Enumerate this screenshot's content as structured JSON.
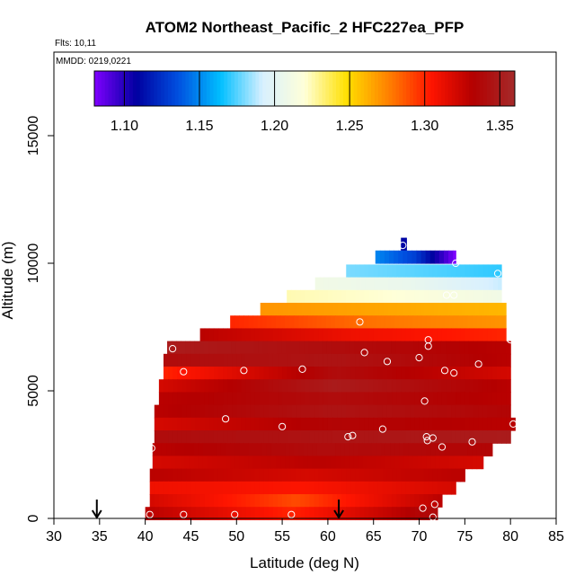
{
  "chart_data": {
    "type": "heatmap",
    "title": "ATOM2 Northeast_Pacific_2 HFC227ea_PFP",
    "flights_label": "Flts: 10,11",
    "dates_label": "MMDD: 0219,0221",
    "xlabel": "Latitude (deg N)",
    "ylabel": "Altitude (m)",
    "xlim": [
      30,
      85
    ],
    "ylim": [
      0,
      17800
    ],
    "xticks": [
      "30",
      "35",
      "40",
      "45",
      "50",
      "55",
      "60",
      "65",
      "70",
      "75",
      "80",
      "85"
    ],
    "yticks": [
      "0",
      "5000",
      "10000",
      "15000"
    ],
    "colorbar": {
      "range": [
        1.08,
        1.36
      ],
      "ticks": [
        "1.10",
        "1.15",
        "1.20",
        "1.25",
        "1.30",
        "1.35"
      ],
      "colors": [
        "#7F00FF",
        "#0000A0",
        "#0050E0",
        "#00BFFF",
        "#D8F0FF",
        "#FFFFD8",
        "#FFE000",
        "#FF8000",
        "#FF1500",
        "#B40000",
        "#A52A2A"
      ]
    },
    "profile_markers_lat": [
      34.7,
      61.2
    ],
    "rows": [
      {
        "alt": 10750,
        "lat": [
          68.0,
          68.6
        ],
        "v": [
          1.11,
          1.11
        ]
      },
      {
        "alt": 10250,
        "lat": [
          65.2,
          74.0
        ],
        "v": [
          1.15,
          1.13,
          1.08
        ]
      },
      {
        "alt": 9700,
        "lat": [
          62.0,
          79.0
        ],
        "v": [
          1.18,
          1.175,
          1.17
        ]
      },
      {
        "alt": 9200,
        "lat": [
          58.6,
          79.0
        ],
        "v": [
          1.21,
          1.205,
          1.19
        ]
      },
      {
        "alt": 8700,
        "lat": [
          55.5,
          79.0
        ],
        "v": [
          1.225,
          1.22,
          1.21
        ]
      },
      {
        "alt": 8200,
        "lat": [
          52.6,
          79.5
        ],
        "v": [
          1.27,
          1.265,
          1.26
        ]
      },
      {
        "alt": 7700,
        "lat": [
          49.3,
          79.5
        ],
        "v": [
          1.3,
          1.28,
          1.27
        ]
      },
      {
        "alt": 7200,
        "lat": [
          46.0,
          79.5
        ],
        "v": [
          1.33,
          1.31,
          1.3
        ]
      },
      {
        "alt": 6700,
        "lat": [
          42.4,
          80.0
        ],
        "v": [
          1.35,
          1.34,
          1.33
        ]
      },
      {
        "alt": 6200,
        "lat": [
          42.0,
          80.0
        ],
        "v": [
          1.34,
          1.345,
          1.33
        ]
      },
      {
        "alt": 5700,
        "lat": [
          42.0,
          80.0
        ],
        "v": [
          1.3,
          1.34,
          1.32
        ]
      },
      {
        "alt": 5200,
        "lat": [
          41.5,
          80.0
        ],
        "v": [
          1.32,
          1.35,
          1.33
        ]
      },
      {
        "alt": 4700,
        "lat": [
          41.5,
          80.0
        ],
        "v": [
          1.33,
          1.34,
          1.33
        ]
      },
      {
        "alt": 4200,
        "lat": [
          41.0,
          80.0
        ],
        "v": [
          1.33,
          1.345,
          1.335
        ]
      },
      {
        "alt": 3700,
        "lat": [
          41.0,
          80.5
        ],
        "v": [
          1.32,
          1.335,
          1.33
        ]
      },
      {
        "alt": 3200,
        "lat": [
          41.0,
          80.0
        ],
        "v": [
          1.34,
          1.345,
          1.35
        ]
      },
      {
        "alt": 2700,
        "lat": [
          40.8,
          78.0
        ],
        "v": [
          1.33,
          1.34,
          1.335
        ]
      },
      {
        "alt": 2200,
        "lat": [
          40.8,
          77.0
        ],
        "v": [
          1.32,
          1.33,
          1.32
        ]
      },
      {
        "alt": 1700,
        "lat": [
          40.5,
          75.0
        ],
        "v": [
          1.33,
          1.32,
          1.33
        ]
      },
      {
        "alt": 1200,
        "lat": [
          40.5,
          74.0
        ],
        "v": [
          1.31,
          1.305,
          1.32
        ]
      },
      {
        "alt": 700,
        "lat": [
          40.5,
          72.5
        ],
        "v": [
          1.32,
          1.29,
          1.33
        ]
      },
      {
        "alt": 200,
        "lat": [
          40.0,
          72.0
        ],
        "v": [
          1.33,
          1.3,
          1.34
        ]
      }
    ],
    "samples": [
      [
        68.2,
        10700
      ],
      [
        74.0,
        10000
      ],
      [
        78.6,
        9600
      ],
      [
        73.0,
        8750
      ],
      [
        73.8,
        8750
      ],
      [
        63.5,
        7700
      ],
      [
        71.0,
        7000
      ],
      [
        80.0,
        7000
      ],
      [
        43.0,
        6650
      ],
      [
        71.0,
        6750
      ],
      [
        64.0,
        6500
      ],
      [
        66.5,
        6150
      ],
      [
        70.0,
        6300
      ],
      [
        76.5,
        6050
      ],
      [
        44.2,
        5750
      ],
      [
        50.8,
        5800
      ],
      [
        57.2,
        5850
      ],
      [
        72.8,
        5800
      ],
      [
        73.8,
        5700
      ],
      [
        70.6,
        4600
      ],
      [
        48.8,
        3900
      ],
      [
        55.0,
        3600
      ],
      [
        66.0,
        3500
      ],
      [
        80.3,
        3700
      ],
      [
        62.2,
        3200
      ],
      [
        62.7,
        3250
      ],
      [
        70.8,
        3200
      ],
      [
        71.5,
        3150
      ],
      [
        70.9,
        3050
      ],
      [
        75.8,
        3000
      ],
      [
        72.5,
        2800
      ],
      [
        40.7,
        2750
      ],
      [
        71.7,
        550
      ],
      [
        70.4,
        400
      ],
      [
        40.5,
        150
      ],
      [
        44.2,
        150
      ],
      [
        49.8,
        150
      ],
      [
        56.0,
        150
      ],
      [
        71.5,
        50
      ]
    ]
  }
}
